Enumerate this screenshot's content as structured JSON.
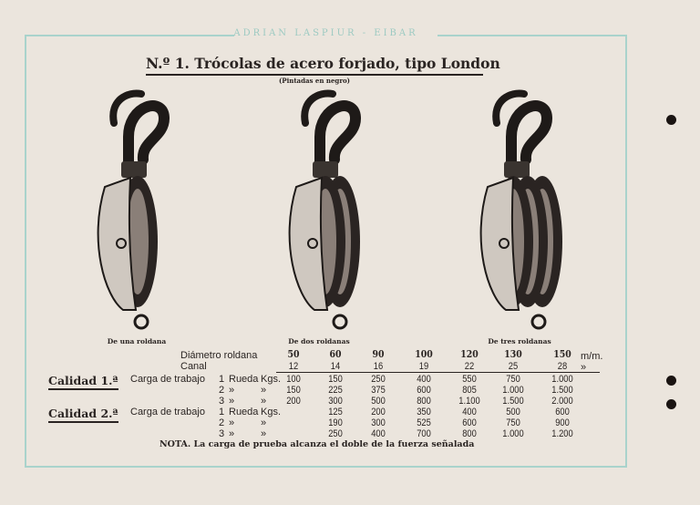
{
  "brand": "ADRIAN LASPIUR - EIBAR",
  "title": "N.º 1.  Trócolas de acero forjado, tipo London",
  "subtitle": "(Pintadas en negro)",
  "images": [
    {
      "caption": "De una roldana",
      "sheaves": 1
    },
    {
      "caption": "De dos roldanas",
      "sheaves": 2
    },
    {
      "caption": "De tres roldanas",
      "sheaves": 3
    }
  ],
  "table": {
    "diameter_label": "Diámetro roldana",
    "canal_label": "Canal",
    "unit": "m/m.",
    "canal_unit": "»",
    "diameters": [
      "50",
      "60",
      "90",
      "100",
      "120",
      "130",
      "150"
    ],
    "canal": [
      "12",
      "14",
      "16",
      "19",
      "22",
      "25",
      "28"
    ],
    "row_labels": [
      {
        "carga": "Carga de trabajo",
        "n": "1",
        "rueda": "Rueda",
        "kgs": "Kgs."
      },
      {
        "carga": "",
        "n": "2",
        "rueda": "»",
        "kgs": "»"
      },
      {
        "carga": "",
        "n": "3",
        "rueda": "»",
        "kgs": "»"
      }
    ],
    "qualities": [
      {
        "label": "Calidad 1.ª",
        "rows": [
          [
            "100",
            "150",
            "250",
            "400",
            "550",
            "750",
            "1.000"
          ],
          [
            "150",
            "225",
            "375",
            "600",
            "805",
            "1.000",
            "1.500"
          ],
          [
            "200",
            "300",
            "500",
            "800",
            "1.100",
            "1.500",
            "2.000"
          ]
        ]
      },
      {
        "label": "Calidad 2.ª",
        "rows": [
          [
            "",
            "125",
            "200",
            "350",
            "400",
            "500",
            "600"
          ],
          [
            "",
            "190",
            "300",
            "525",
            "600",
            "750",
            "900"
          ],
          [
            "",
            "250",
            "400",
            "700",
            "800",
            "1.000",
            "1.200"
          ]
        ]
      }
    ]
  },
  "note": "NOTA.   La carga de prueba alcanza el doble de la fuerza señalada",
  "colors": {
    "paper": "#ebe5dd",
    "frame": "#a9d3cc",
    "ink": "#2a2422"
  }
}
